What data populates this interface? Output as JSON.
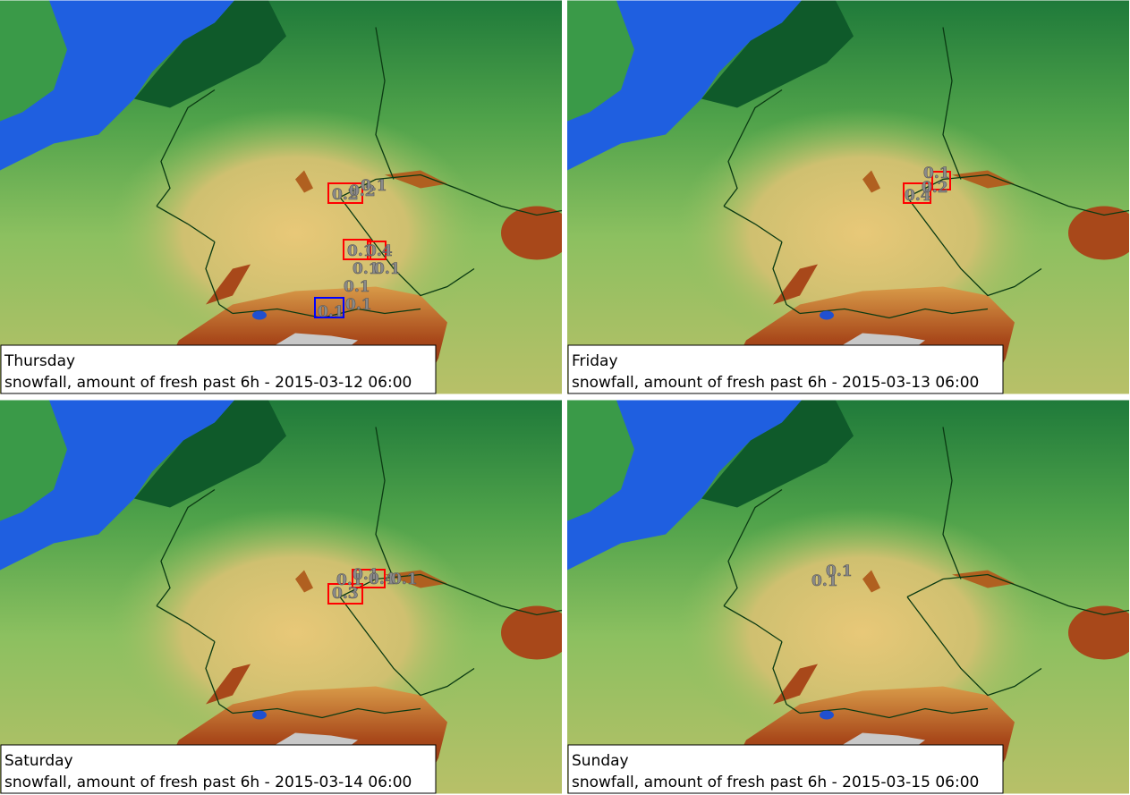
{
  "panels": [
    {
      "day": "Thursday",
      "caption": "snowfall, amount of fresh past 6h - 2015-03-12 06:00",
      "labels": [
        "0.2",
        "0.2",
        "0.1",
        "0.1",
        "0.4",
        "0.1",
        "0.1",
        "0.1",
        "0.1",
        "0.1"
      ]
    },
    {
      "day": "Friday",
      "caption": "snowfall, amount of fresh past 6h - 2015-03-13 06:00",
      "labels": [
        "0.4",
        "0.2",
        "0.1"
      ]
    },
    {
      "day": "Saturday",
      "caption": "snowfall, amount of fresh past 6h - 2015-03-14 06:00",
      "labels": [
        "0.3",
        "0.1",
        "0.1",
        "0.4",
        "0.1"
      ]
    },
    {
      "day": "Sunday",
      "caption": "snowfall, amount of fresh past 6h - 2015-03-15 06:00",
      "labels": [
        "0.1",
        "0.1"
      ]
    }
  ]
}
